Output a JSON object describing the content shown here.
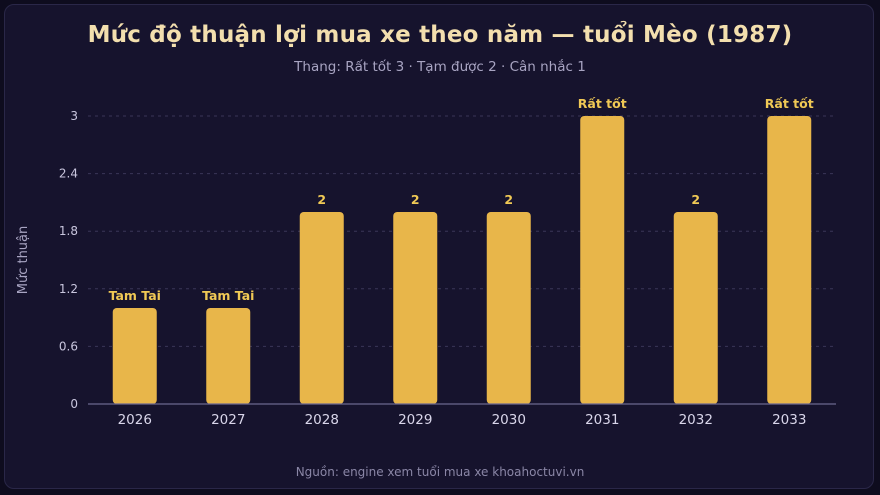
{
  "title": "Mức độ thuận lợi mua xe theo năm — tuổi Mèo (1987)",
  "subtitle": "Thang: Rất tốt 3 · Tạm được 2 · Cân nhắc 1",
  "footer": "Nguồn: engine xem tuổi mua xe khoahoctuvi.vn",
  "colors": {
    "bar": "#e8b64a",
    "grid": "#3a3658",
    "axis": "#6b6790",
    "label": "#f0c955"
  },
  "chart_data": {
    "type": "bar",
    "title": "Mức độ thuận lợi mua xe theo năm — tuổi Mèo (1987)",
    "subtitle": "Thang: Rất tốt 3 · Tạm được 2 · Cân nhắc 1",
    "xlabel": "",
    "ylabel": "Mức thuận",
    "categories": [
      "2026",
      "2027",
      "2028",
      "2029",
      "2030",
      "2031",
      "2032",
      "2033"
    ],
    "values": [
      1,
      1,
      2,
      2,
      2,
      3,
      2,
      3
    ],
    "data_labels": [
      "Tam Tai",
      "Tam Tai",
      "2",
      "2",
      "2",
      "Rất tốt",
      "2",
      "Rất tốt"
    ],
    "ylim": [
      0,
      3
    ],
    "yticks": [
      0,
      0.6,
      1.2,
      1.8,
      2.4,
      3
    ],
    "ytick_labels": [
      "0",
      "0.6",
      "1.2",
      "1.8",
      "2.4",
      "3"
    ],
    "grid": true,
    "legend": "none"
  }
}
